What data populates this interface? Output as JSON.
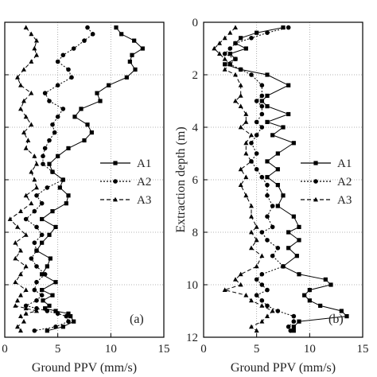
{
  "chart_data": [
    {
      "type": "line",
      "panel_label": "(a)",
      "xlabel": "Ground PPV (mm/s)",
      "ylabel": "",
      "xlim": [
        0,
        15
      ],
      "ylim": [
        12,
        0
      ],
      "xticks": [
        "0",
        "5",
        "10",
        "15"
      ],
      "yticks": [],
      "grid": true,
      "legend_position": "center-right",
      "series": [
        {
          "name": "A1",
          "marker": "square",
          "dash": "solid",
          "color": "#000000",
          "x": [
            10.5,
            11.0,
            12.2,
            13.0,
            12.0,
            11.8,
            12.3,
            11.5,
            9.8,
            8.7,
            9.0,
            7.2,
            6.6,
            7.8,
            8.2,
            7.5,
            6.0,
            5.0,
            4.2,
            4.5,
            5.5,
            5.2,
            6.0,
            5.8,
            4.5,
            3.5,
            4.8,
            4.2,
            3.5,
            3.0,
            4.3,
            4.0,
            3.5,
            4.8,
            3.5,
            4.5,
            3.6,
            4.2,
            3.8,
            4.8,
            6.0,
            6.2,
            6.5,
            5.5,
            4.0
          ],
          "y": [
            0.2,
            0.45,
            0.7,
            1.0,
            1.25,
            1.5,
            1.8,
            2.1,
            2.4,
            2.7,
            3.0,
            3.3,
            3.6,
            3.9,
            4.2,
            4.5,
            4.8,
            5.1,
            5.4,
            5.7,
            6.0,
            6.3,
            6.6,
            6.9,
            7.2,
            7.5,
            7.8,
            8.1,
            8.4,
            8.7,
            9.0,
            9.3,
            9.6,
            9.9,
            10.2,
            10.4,
            10.6,
            10.8,
            10.9,
            11.0,
            11.1,
            11.2,
            11.4,
            11.6,
            11.75
          ]
        },
        {
          "name": "A2",
          "marker": "circle",
          "dash": "dotted",
          "color": "#000000",
          "x": [
            7.8,
            8.3,
            7.5,
            6.5,
            5.5,
            5.0,
            6.0,
            6.3,
            5.0,
            3.8,
            4.2,
            5.5,
            5.0,
            4.5,
            4.7,
            4.2,
            3.8,
            3.6,
            3.6,
            4.5,
            5.5,
            4.0,
            3.0,
            3.5,
            2.8,
            2.0,
            3.0,
            3.5,
            2.8,
            3.0,
            2.5,
            3.0,
            3.8,
            3.0,
            2.8,
            3.5,
            3.0,
            2.0,
            3.0,
            4.0,
            5.0,
            5.8,
            6.0,
            4.8,
            2.8
          ],
          "y": [
            0.2,
            0.45,
            0.7,
            1.0,
            1.25,
            1.5,
            1.8,
            2.1,
            2.4,
            2.7,
            3.0,
            3.3,
            3.6,
            3.9,
            4.2,
            4.5,
            4.8,
            5.1,
            5.4,
            5.7,
            6.0,
            6.3,
            6.6,
            6.9,
            7.2,
            7.5,
            7.8,
            8.1,
            8.4,
            8.7,
            9.0,
            9.3,
            9.6,
            9.9,
            10.2,
            10.4,
            10.6,
            10.8,
            10.9,
            11.0,
            11.1,
            11.2,
            11.4,
            11.6,
            11.75
          ]
        },
        {
          "name": "A3",
          "marker": "triangle",
          "dash": "dashed",
          "color": "#000000",
          "x": [
            2.0,
            2.5,
            3.0,
            2.8,
            3.0,
            2.5,
            1.8,
            1.2,
            1.5,
            2.5,
            1.8,
            1.5,
            2.0,
            2.5,
            1.8,
            2.2,
            2.0,
            2.8,
            3.0,
            2.5,
            2.8,
            3.0,
            2.0,
            2.5,
            1.5,
            0.5,
            1.2,
            2.0,
            1.0,
            1.5,
            1.0,
            2.0,
            1.5,
            1.0,
            2.0,
            1.5,
            1.2,
            1.0,
            2.0,
            3.0,
            2.0,
            1.5,
            1.8,
            1.2,
            1.5
          ],
          "y": [
            0.2,
            0.45,
            0.7,
            1.0,
            1.25,
            1.5,
            1.8,
            2.1,
            2.4,
            2.7,
            3.0,
            3.3,
            3.6,
            3.9,
            4.2,
            4.5,
            4.8,
            5.1,
            5.4,
            5.7,
            6.0,
            6.3,
            6.6,
            6.9,
            7.2,
            7.5,
            7.8,
            8.1,
            8.4,
            8.7,
            9.0,
            9.3,
            9.6,
            9.9,
            10.2,
            10.4,
            10.6,
            10.8,
            10.9,
            11.0,
            11.1,
            11.2,
            11.4,
            11.6,
            11.75
          ]
        }
      ]
    },
    {
      "type": "line",
      "panel_label": "(b)",
      "xlabel": "Ground PPV (mm/s)",
      "ylabel": "Extraction depth (m)",
      "xlim": [
        0,
        15
      ],
      "ylim": [
        12,
        0
      ],
      "xticks": [
        "0",
        "5",
        "10",
        "15"
      ],
      "yticks": [
        "0",
        "2",
        "4",
        "6",
        "8",
        "10",
        "12"
      ],
      "grid": true,
      "legend_position": "center-right",
      "series": [
        {
          "name": "A1",
          "marker": "square",
          "dash": "solid",
          "color": "#000000",
          "x": [
            7.5,
            5.0,
            3.5,
            3.0,
            4.0,
            2.5,
            3.0,
            2.0,
            3.5,
            6.0,
            8.0,
            6.0,
            5.5,
            6.0,
            8.0,
            6.0,
            7.5,
            6.5,
            8.5,
            7.0,
            6.0,
            7.0,
            6.0,
            7.0,
            7.5,
            7.0,
            8.5,
            9.0,
            8.0,
            9.0,
            8.0,
            8.8,
            7.5,
            9.0,
            11.5,
            12.0,
            10.0,
            9.5,
            10.0,
            11.0,
            13.0,
            13.5,
            9.0,
            8.5,
            8.5
          ],
          "y": [
            0.2,
            0.4,
            0.6,
            0.8,
            1.0,
            1.2,
            1.4,
            1.6,
            1.8,
            2.0,
            2.4,
            2.8,
            3.0,
            3.2,
            3.5,
            3.8,
            4.0,
            4.3,
            4.6,
            5.0,
            5.3,
            5.6,
            5.9,
            6.2,
            6.6,
            7.0,
            7.4,
            7.8,
            8.0,
            8.3,
            8.6,
            8.9,
            9.3,
            9.6,
            9.8,
            10.0,
            10.2,
            10.4,
            10.6,
            10.8,
            11.0,
            11.2,
            11.4,
            11.6,
            11.75
          ]
        },
        {
          "name": "A2",
          "marker": "circle",
          "dash": "dotted",
          "color": "#000000",
          "x": [
            8.0,
            6.0,
            4.5,
            3.0,
            2.5,
            2.0,
            3.0,
            2.5,
            3.5,
            4.5,
            5.5,
            5.5,
            5.0,
            5.5,
            5.5,
            5.0,
            5.5,
            5.0,
            4.5,
            5.0,
            4.5,
            5.0,
            5.5,
            6.0,
            6.0,
            6.5,
            6.0,
            6.5,
            5.5,
            6.0,
            7.0,
            6.5,
            7.5,
            5.5,
            5.0,
            5.5,
            6.0,
            5.0,
            5.5,
            6.0,
            7.0,
            8.5,
            8.5,
            8.0,
            8.2
          ],
          "y": [
            0.2,
            0.4,
            0.6,
            0.8,
            1.0,
            1.2,
            1.4,
            1.6,
            1.8,
            2.0,
            2.4,
            2.8,
            3.0,
            3.2,
            3.5,
            3.8,
            4.0,
            4.3,
            4.6,
            5.0,
            5.3,
            5.6,
            5.9,
            6.2,
            6.6,
            7.0,
            7.4,
            7.8,
            8.0,
            8.3,
            8.6,
            8.9,
            9.3,
            9.6,
            9.8,
            10.0,
            10.2,
            10.4,
            10.6,
            10.8,
            11.0,
            11.2,
            11.4,
            11.6,
            11.75
          ]
        },
        {
          "name": "A3",
          "marker": "triangle",
          "dash": "dashed",
          "color": "#000000",
          "x": [
            3.0,
            2.5,
            2.0,
            1.5,
            1.0,
            1.5,
            2.0,
            2.5,
            2.0,
            3.0,
            3.5,
            3.5,
            3.0,
            3.5,
            4.0,
            4.0,
            3.5,
            4.5,
            4.0,
            4.0,
            4.5,
            3.5,
            4.0,
            3.5,
            4.0,
            4.5,
            4.5,
            5.0,
            4.5,
            5.0,
            4.5,
            5.5,
            5.0,
            3.5,
            3.0,
            3.5,
            2.0,
            4.0,
            4.5,
            5.5,
            6.5,
            6.0,
            5.5,
            4.5,
            5.0
          ],
          "y": [
            0.2,
            0.4,
            0.6,
            0.8,
            1.0,
            1.2,
            1.4,
            1.6,
            1.8,
            2.0,
            2.4,
            2.8,
            3.0,
            3.2,
            3.5,
            3.8,
            4.0,
            4.3,
            4.6,
            5.0,
            5.3,
            5.6,
            5.9,
            6.2,
            6.6,
            7.0,
            7.4,
            7.8,
            8.0,
            8.3,
            8.6,
            8.9,
            9.3,
            9.6,
            9.8,
            10.0,
            10.2,
            10.4,
            10.6,
            10.8,
            11.0,
            11.2,
            11.4,
            11.6,
            11.75
          ]
        }
      ]
    }
  ]
}
